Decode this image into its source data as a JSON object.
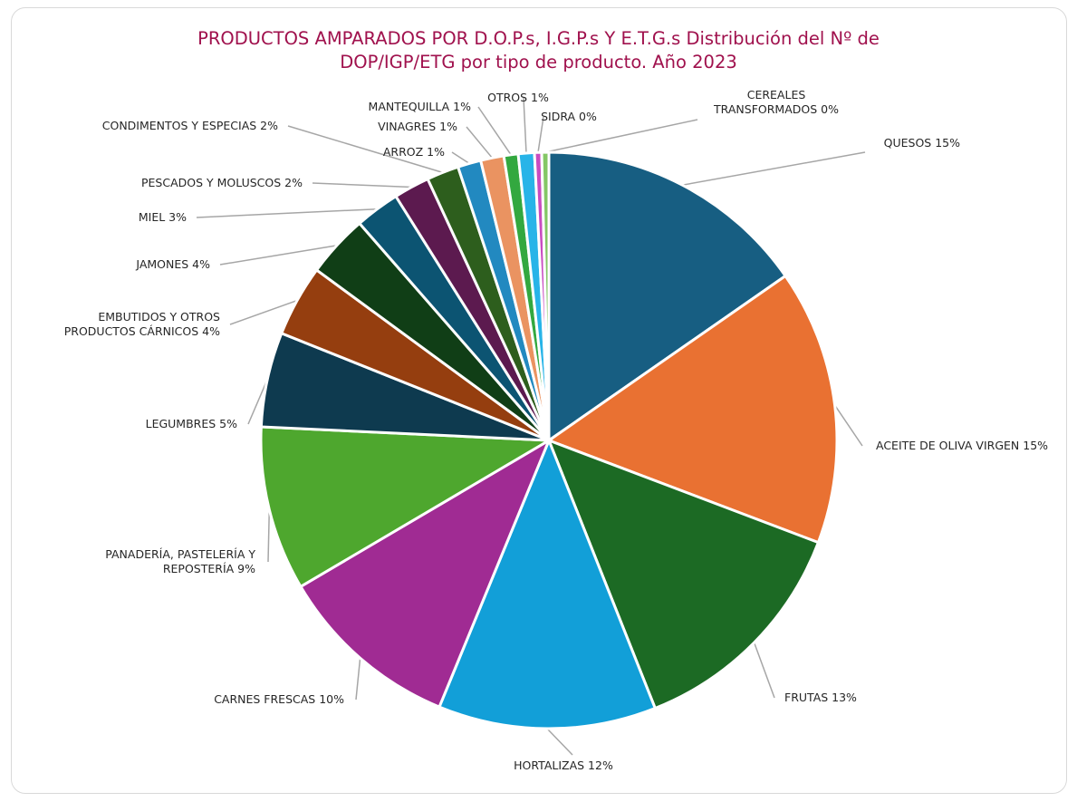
{
  "chart_data": {
    "type": "pie",
    "title_line1": "PRODUCTOS AMPARADOS POR D.O.P.s, I.G.P.s Y E.T.G.s Distribución del Nº de",
    "title_line2": "DOP/IGP/ETG por tipo de producto. Año 2023",
    "slices": [
      {
        "label": [
          "QUESOS 15%"
        ],
        "value": 15.3,
        "color": "#175e82"
      },
      {
        "label": [
          "ACEITE DE OLIVA VIRGEN 15%"
        ],
        "value": 15.4,
        "color": "#e97132"
      },
      {
        "label": [
          "FRUTAS 13%"
        ],
        "value": 13.2,
        "color": "#1c6a24"
      },
      {
        "label": [
          "HORTALIZAS 12%"
        ],
        "value": 12.2,
        "color": "#129fd8"
      },
      {
        "label": [
          "CARNES FRESCAS 10%"
        ],
        "value": 10.3,
        "color": "#a02b93"
      },
      {
        "label": [
          "PANADERÍA, PASTELERÍA Y",
          "REPOSTERÍA 9%"
        ],
        "value": 9.2,
        "color": "#4ea72e"
      },
      {
        "label": [
          "LEGUMBRES 5%"
        ],
        "value": 5.3,
        "color": "#0e3a4f"
      },
      {
        "label": [
          "EMBUTIDOS Y OTROS",
          "PRODUCTOS CÁRNICOS 4%"
        ],
        "value": 4.0,
        "color": "#953e0f"
      },
      {
        "label": [
          "JAMONES 4%"
        ],
        "value": 3.5,
        "color": "#103e16"
      },
      {
        "label": [
          "MIEL 3%"
        ],
        "value": 2.5,
        "color": "#0c5472"
      },
      {
        "label": [
          "PESCADOS Y MOLUSCOS 2%"
        ],
        "value": 2.0,
        "color": "#5c1a4f"
      },
      {
        "label": [
          "CONDIMENTOS Y ESPECIAS 2%"
        ],
        "value": 1.8,
        "color": "#2d5e1d"
      },
      {
        "label": [
          "ARROZ 1%"
        ],
        "value": 1.3,
        "color": "#2289c0"
      },
      {
        "label": [
          "VINAGRES 1%"
        ],
        "value": 1.3,
        "color": "#ea9361"
      },
      {
        "label": [
          "MANTEQUILLA 1%"
        ],
        "value": 0.8,
        "color": "#33a83f"
      },
      {
        "label": [
          "OTROS 1%"
        ],
        "value": 0.9,
        "color": "#28b4e8"
      },
      {
        "label": [
          "SIDRA 0%"
        ],
        "value": 0.4,
        "color": "#c84cc0"
      },
      {
        "label": [
          "CEREALES",
          "TRANSFORMADOS 0%"
        ],
        "value": 0.4,
        "color": "#84c765"
      }
    ],
    "legend": "none"
  }
}
